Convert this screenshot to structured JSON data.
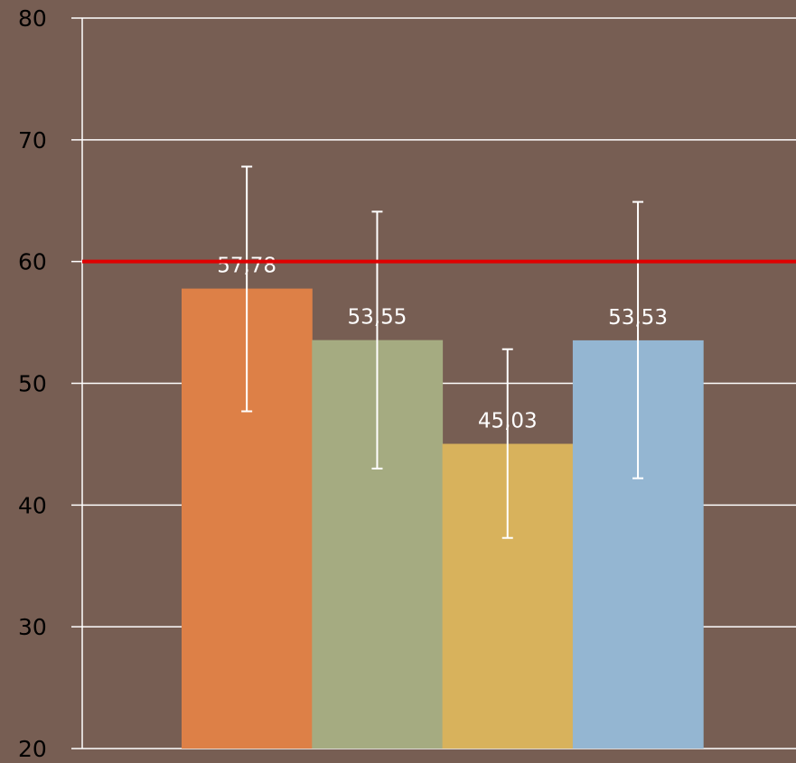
{
  "chart_data": {
    "type": "bar",
    "title": "",
    "xlabel": "",
    "ylabel": "",
    "ylim": [
      20,
      80
    ],
    "yticks": [
      20,
      30,
      40,
      50,
      60,
      70,
      80
    ],
    "grid": true,
    "legend": "none",
    "values": [
      57.78,
      53.55,
      45.03,
      53.53
    ],
    "value_labels": [
      "57,78",
      "53,55",
      "45,03",
      "53,53"
    ],
    "error_low": [
      47.7,
      43.0,
      37.3,
      42.2
    ],
    "error_high": [
      67.8,
      64.1,
      52.8,
      64.9
    ],
    "bar_colors": [
      "#dd8047",
      "#a5ab81",
      "#d8b25c",
      "#94b6d2"
    ],
    "reference_line": {
      "value": 60,
      "color": "#e00000"
    },
    "background_color": "#775e53",
    "grid_color": "#ffffff",
    "errorbar_color": "#ffffff"
  }
}
